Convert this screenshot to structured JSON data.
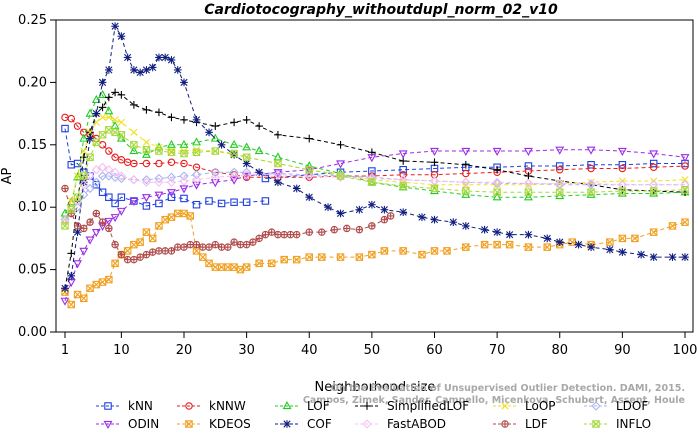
{
  "chart_data": {
    "type": "line",
    "title": "Cardiotocography_withoutdupl_norm_02_v10",
    "xlabel": "Neighborhood size",
    "ylabel": "AP",
    "xlim": [
      1,
      100
    ],
    "ylim": [
      0,
      0.25
    ],
    "x_ticks": [
      1,
      10,
      20,
      30,
      40,
      50,
      60,
      70,
      80,
      90,
      100
    ],
    "y_ticks": [
      "0.00",
      "0.05",
      "0.10",
      "0.15",
      "0.20",
      "0.25"
    ],
    "grid": false,
    "legend_position": "bottom",
    "watermark": [
      "Campos, Zimek, Sander, Campello, Micenkova, Schubert, Assent, Houle",
      "On the Evaluation of Unsupervised Outlier Detection. DAMI, 2015."
    ],
    "series": [
      {
        "name": "kNN",
        "color": "#1f3fe0",
        "marker": "square",
        "x": [
          1,
          2,
          3,
          4,
          5,
          6,
          7,
          8,
          9,
          10,
          12,
          14,
          16,
          18,
          20,
          22,
          24,
          26,
          28,
          30,
          33
        ],
        "y": [
          0.163,
          0.134,
          0.135,
          0.128,
          0.125,
          0.118,
          0.112,
          0.108,
          0.103,
          0.108,
          0.105,
          0.101,
          0.103,
          0.108,
          0.107,
          0.102,
          0.105,
          0.103,
          0.104,
          0.104,
          0.105
        ]
      },
      {
        "name": "kNN",
        "color": "#1f3fe0",
        "marker": "square",
        "x": [
          33,
          40,
          45,
          50,
          55,
          60,
          65,
          70,
          75,
          80,
          85,
          90,
          95,
          100
        ],
        "y": [
          0.123,
          0.126,
          0.128,
          0.129,
          0.13,
          0.131,
          0.132,
          0.132,
          0.133,
          0.133,
          0.134,
          0.134,
          0.135,
          0.135
        ]
      },
      {
        "name": "kNNW",
        "color": "#e81e1e",
        "marker": "circle",
        "x": [
          1,
          2,
          3,
          4,
          5,
          6,
          7,
          8,
          9,
          10,
          11,
          12,
          14,
          16,
          18,
          20,
          22,
          25,
          28,
          30,
          35,
          40,
          45,
          50,
          55,
          60,
          65,
          70,
          75,
          80,
          85,
          90,
          95,
          100
        ],
        "y": [
          0.172,
          0.171,
          0.165,
          0.16,
          0.158,
          0.155,
          0.15,
          0.145,
          0.14,
          0.138,
          0.136,
          0.135,
          0.135,
          0.135,
          0.136,
          0.135,
          0.132,
          0.128,
          0.126,
          0.124,
          0.124,
          0.124,
          0.125,
          0.125,
          0.126,
          0.126,
          0.127,
          0.128,
          0.129,
          0.13,
          0.131,
          0.131,
          0.132,
          0.133
        ]
      },
      {
        "name": "LOF",
        "color": "#22cc22",
        "marker": "triangle-up",
        "x": [
          1,
          2,
          3,
          4,
          5,
          6,
          7,
          8,
          9,
          10,
          12,
          14,
          16,
          18,
          20,
          22,
          25,
          28,
          30,
          32,
          35,
          40,
          45,
          50,
          55,
          60,
          65,
          70,
          75,
          80,
          85,
          90,
          95,
          100
        ],
        "y": [
          0.095,
          0.104,
          0.124,
          0.155,
          0.175,
          0.186,
          0.19,
          0.177,
          0.165,
          0.155,
          0.145,
          0.142,
          0.148,
          0.15,
          0.15,
          0.152,
          0.155,
          0.15,
          0.148,
          0.145,
          0.14,
          0.133,
          0.127,
          0.12,
          0.116,
          0.113,
          0.11,
          0.108,
          0.108,
          0.109,
          0.11,
          0.111,
          0.111,
          0.112
        ]
      },
      {
        "name": "SimplifiedLOF",
        "color": "#000000",
        "marker": "plus",
        "x": [
          1,
          2,
          3,
          4,
          5,
          6,
          7,
          8,
          9,
          10,
          12,
          14,
          16,
          18,
          20,
          22,
          25,
          28,
          30,
          32,
          35,
          40,
          45,
          50,
          55,
          60,
          65,
          70,
          75,
          80,
          85,
          90,
          95,
          100
        ],
        "y": [
          0.035,
          0.063,
          0.105,
          0.14,
          0.16,
          0.175,
          0.18,
          0.188,
          0.192,
          0.19,
          0.182,
          0.178,
          0.176,
          0.172,
          0.17,
          0.168,
          0.165,
          0.168,
          0.17,
          0.165,
          0.158,
          0.155,
          0.15,
          0.144,
          0.137,
          0.136,
          0.134,
          0.13,
          0.125,
          0.121,
          0.118,
          0.114,
          0.113,
          0.112
        ]
      },
      {
        "name": "LoOP",
        "color": "#f0e020",
        "marker": "x",
        "x": [
          1,
          2,
          3,
          4,
          5,
          6,
          7,
          8,
          9,
          10,
          12,
          14,
          16,
          18,
          20,
          22,
          25,
          28,
          30,
          35,
          40,
          45,
          50,
          55,
          60,
          65,
          70,
          75,
          80,
          85,
          90,
          95,
          100
        ],
        "y": [
          0.09,
          0.105,
          0.125,
          0.145,
          0.16,
          0.168,
          0.172,
          0.172,
          0.17,
          0.168,
          0.16,
          0.152,
          0.148,
          0.145,
          0.145,
          0.146,
          0.145,
          0.142,
          0.14,
          0.135,
          0.13,
          0.126,
          0.122,
          0.12,
          0.118,
          0.118,
          0.118,
          0.118,
          0.119,
          0.12,
          0.121,
          0.121,
          0.122
        ]
      },
      {
        "name": "LDOF",
        "color": "#aab4f0",
        "marker": "diamond",
        "x": [
          1,
          2,
          3,
          4,
          5,
          6,
          7,
          8,
          9,
          10,
          12,
          14,
          16,
          18,
          20,
          22,
          25,
          28,
          30,
          35,
          40,
          45,
          50,
          55,
          60,
          65,
          70,
          75,
          80,
          85,
          90,
          95,
          100
        ],
        "y": [
          0.09,
          0.095,
          0.1,
          0.11,
          0.115,
          0.12,
          0.125,
          0.125,
          0.124,
          0.123,
          0.122,
          0.122,
          0.123,
          0.124,
          0.125,
          0.126,
          0.128,
          0.128,
          0.128,
          0.127,
          0.126,
          0.125,
          0.124,
          0.122,
          0.121,
          0.12,
          0.119,
          0.119,
          0.118,
          0.118,
          0.118,
          0.118,
          0.118
        ]
      },
      {
        "name": "ODIN",
        "color": "#9a2be8",
        "marker": "triangle-down",
        "x": [
          1,
          2,
          3,
          4,
          5,
          6,
          7,
          8,
          9,
          10,
          12,
          14,
          16,
          18,
          20,
          22,
          25,
          28,
          30,
          35,
          40,
          45,
          50,
          55,
          60,
          65,
          70,
          75,
          80,
          85,
          90,
          95,
          100
        ],
        "y": [
          0.025,
          0.04,
          0.055,
          0.065,
          0.074,
          0.08,
          0.085,
          0.089,
          0.092,
          0.097,
          0.105,
          0.108,
          0.11,
          0.112,
          0.115,
          0.118,
          0.12,
          0.122,
          0.125,
          0.128,
          0.13,
          0.135,
          0.14,
          0.143,
          0.145,
          0.145,
          0.145,
          0.145,
          0.146,
          0.146,
          0.145,
          0.143,
          0.14
        ]
      },
      {
        "name": "KDEOS",
        "color": "#f0a020",
        "marker": "square-x",
        "x": [
          1,
          2,
          3,
          4,
          5,
          6,
          7,
          8,
          9,
          10,
          11,
          12,
          13,
          14,
          15,
          16,
          17,
          18,
          19,
          20,
          21,
          22,
          23,
          24,
          25,
          26,
          27,
          28,
          29,
          30,
          32,
          34,
          36,
          38,
          40,
          42,
          45,
          48,
          50,
          52,
          55,
          58,
          60,
          62,
          65,
          68,
          70,
          72,
          75,
          78,
          80,
          82,
          85,
          88,
          90,
          92,
          95,
          98,
          100
        ],
        "y": [
          0.032,
          0.022,
          0.03,
          0.027,
          0.035,
          0.038,
          0.04,
          0.042,
          0.055,
          0.062,
          0.065,
          0.07,
          0.072,
          0.08,
          0.075,
          0.085,
          0.09,
          0.092,
          0.095,
          0.095,
          0.093,
          0.065,
          0.06,
          0.055,
          0.052,
          0.052,
          0.052,
          0.052,
          0.05,
          0.052,
          0.055,
          0.055,
          0.058,
          0.058,
          0.06,
          0.06,
          0.06,
          0.06,
          0.062,
          0.065,
          0.065,
          0.062,
          0.065,
          0.065,
          0.068,
          0.07,
          0.07,
          0.07,
          0.068,
          0.068,
          0.07,
          0.072,
          0.07,
          0.072,
          0.075,
          0.075,
          0.08,
          0.085,
          0.088
        ]
      },
      {
        "name": "COF",
        "color": "#101e80",
        "marker": "star",
        "x": [
          1,
          2,
          3,
          4,
          5,
          6,
          7,
          8,
          9,
          10,
          11,
          12,
          13,
          14,
          15,
          16,
          17,
          18,
          19,
          20,
          22,
          24,
          26,
          28,
          30,
          32,
          35,
          38,
          40,
          43,
          45,
          48,
          50,
          52,
          55,
          58,
          60,
          63,
          65,
          68,
          70,
          72,
          75,
          78,
          80,
          83,
          85,
          88,
          90,
          93,
          95,
          98,
          100
        ],
        "y": [
          0.035,
          0.045,
          0.08,
          0.12,
          0.155,
          0.175,
          0.2,
          0.21,
          0.245,
          0.237,
          0.22,
          0.21,
          0.208,
          0.21,
          0.212,
          0.22,
          0.22,
          0.218,
          0.21,
          0.2,
          0.17,
          0.16,
          0.15,
          0.142,
          0.135,
          0.128,
          0.12,
          0.115,
          0.108,
          0.1,
          0.095,
          0.098,
          0.102,
          0.098,
          0.096,
          0.092,
          0.09,
          0.088,
          0.085,
          0.082,
          0.08,
          0.078,
          0.078,
          0.075,
          0.072,
          0.07,
          0.068,
          0.066,
          0.064,
          0.062,
          0.06,
          0.06,
          0.06
        ]
      },
      {
        "name": "FastABOD",
        "color": "#f4c0f0",
        "marker": "diamond",
        "x": [
          1,
          2,
          3,
          4,
          5,
          6,
          7,
          8,
          9,
          10,
          12,
          14,
          16,
          18,
          20,
          22,
          25,
          28,
          30,
          35,
          40,
          45,
          50,
          55,
          60,
          65,
          70,
          75,
          80,
          85,
          90,
          95,
          100
        ],
        "y": [
          0.088,
          0.095,
          0.105,
          0.118,
          0.125,
          0.13,
          0.132,
          0.13,
          0.128,
          0.125,
          0.122,
          0.12,
          0.12,
          0.12,
          0.121,
          0.122,
          0.124,
          0.125,
          0.126,
          0.126,
          0.125,
          0.124,
          0.123,
          0.122,
          0.121,
          0.12,
          0.12,
          0.119,
          0.119,
          0.119,
          0.118,
          0.118,
          0.118
        ]
      },
      {
        "name": "LDF",
        "color": "#b04a4a",
        "marker": "circle-plus",
        "x": [
          1,
          2,
          3,
          4,
          5,
          6,
          7,
          8,
          9,
          10,
          11,
          12,
          13,
          14,
          15,
          16,
          17,
          18,
          19,
          20,
          21,
          22,
          23,
          24,
          25,
          26,
          27,
          28,
          29,
          30,
          31,
          32,
          33,
          34,
          35,
          36,
          37,
          38,
          40,
          42,
          44,
          46,
          48,
          50,
          52,
          53
        ],
        "y": [
          0.115,
          0.095,
          0.085,
          0.083,
          0.088,
          0.095,
          0.088,
          0.083,
          0.07,
          0.062,
          0.058,
          0.058,
          0.06,
          0.062,
          0.064,
          0.065,
          0.065,
          0.065,
          0.068,
          0.068,
          0.07,
          0.07,
          0.068,
          0.068,
          0.07,
          0.068,
          0.068,
          0.072,
          0.07,
          0.07,
          0.072,
          0.075,
          0.078,
          0.08,
          0.078,
          0.078,
          0.078,
          0.078,
          0.08,
          0.08,
          0.082,
          0.083,
          0.082,
          0.085,
          0.09,
          0.093
        ]
      },
      {
        "name": "INFLO",
        "color": "#a8d840",
        "marker": "square-x",
        "x": [
          1,
          2,
          3,
          4,
          5,
          6,
          7,
          8,
          9,
          10,
          12,
          14,
          16,
          18,
          20,
          22,
          25,
          28,
          30,
          35,
          40,
          45,
          50,
          55,
          60,
          65,
          70,
          75,
          80,
          85,
          90,
          95,
          100
        ],
        "y": [
          0.085,
          0.098,
          0.108,
          0.125,
          0.14,
          0.152,
          0.158,
          0.162,
          0.16,
          0.158,
          0.15,
          0.146,
          0.145,
          0.144,
          0.143,
          0.144,
          0.145,
          0.143,
          0.14,
          0.135,
          0.13,
          0.125,
          0.12,
          0.117,
          0.115,
          0.113,
          0.112,
          0.112,
          0.112,
          0.112,
          0.113,
          0.113,
          0.114
        ]
      }
    ]
  }
}
